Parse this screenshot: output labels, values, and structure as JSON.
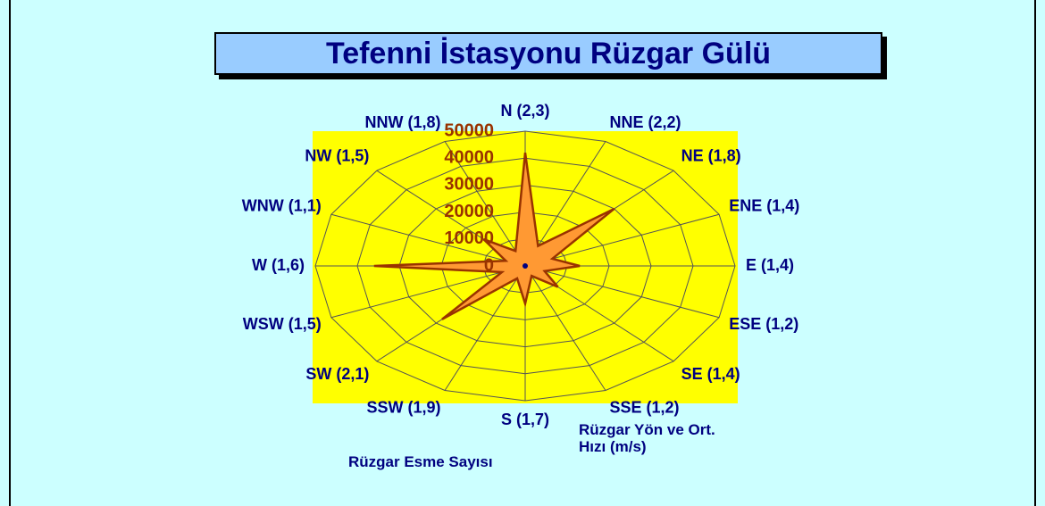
{
  "chart_data": {
    "type": "radar",
    "title": "Tefenni İstasyonu Rüzgar Gülü",
    "category_axis_title": "Rüzgar Yön ve Ort. Hızı (m/s)",
    "categories": [
      "N (2,3)",
      "NNE (2,2)",
      "NE (1,8)",
      "ENE (1,4)",
      "E (1,4)",
      "ESE (1,2)",
      "SE (1,4)",
      "SSE (1,2)",
      "S (1,7)",
      "SSW (1,9)",
      "SW (2,1)",
      "WSW (1,5)",
      "W (1,6)",
      "WNW (1,1)",
      "NW (1,5)",
      "NNW (1,8)"
    ],
    "series": [
      {
        "name": "Rüzgar Esme Sayısı",
        "color": "#ff9933",
        "values": [
          42000,
          8000,
          30000,
          7000,
          13000,
          5000,
          11000,
          4000,
          14000,
          5000,
          28000,
          6000,
          36000,
          5000,
          14000,
          6000
        ]
      }
    ],
    "ylim": [
      0,
      50000
    ],
    "yticks": [
      0,
      10000,
      20000,
      30000,
      40000,
      50000
    ],
    "grid": true
  }
}
